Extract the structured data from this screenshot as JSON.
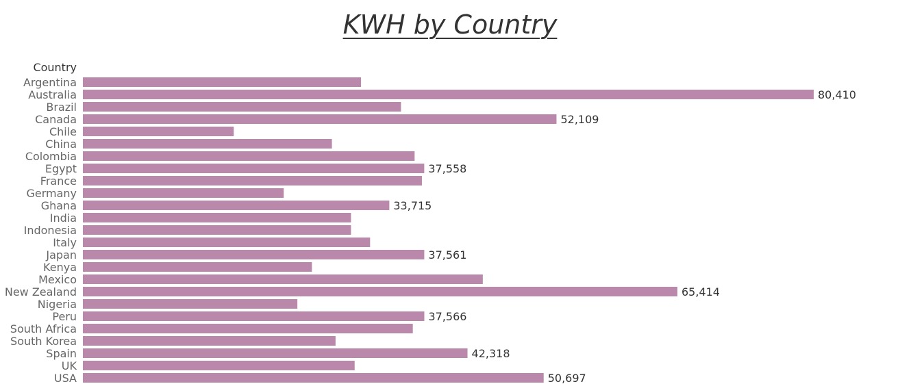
{
  "chart_data": {
    "type": "bar",
    "orientation": "horizontal",
    "title": "KWH by Country",
    "row_header": "Country",
    "bar_color": "#b988aa",
    "xlim": [
      0,
      80410
    ],
    "categories": [
      "Argentina",
      "Australia",
      "Brazil",
      "Canada",
      "Chile",
      "China",
      "Colombia",
      "Egypt",
      "France",
      "Germany",
      "Ghana",
      "India",
      "Indonesia",
      "Italy",
      "Japan",
      "Kenya",
      "Mexico",
      "New Zealand",
      "Nigeria",
      "Peru",
      "South Africa",
      "South Korea",
      "Spain",
      "UK",
      "USA"
    ],
    "values": [
      30600,
      80410,
      35000,
      52109,
      16600,
      27400,
      36500,
      37558,
      37300,
      22100,
      33715,
      29500,
      29500,
      31600,
      37561,
      25200,
      44000,
      65414,
      23600,
      37566,
      36300,
      27800,
      42318,
      29900,
      50697
    ],
    "data_labels": [
      "",
      "80,410",
      "",
      "52,109",
      "",
      "",
      "",
      "37,558",
      "",
      "",
      "33,715",
      "",
      "",
      "",
      "37,561",
      "",
      "",
      "65,414",
      "",
      "37,566",
      "",
      "",
      "42,318",
      "",
      "50,697"
    ]
  }
}
